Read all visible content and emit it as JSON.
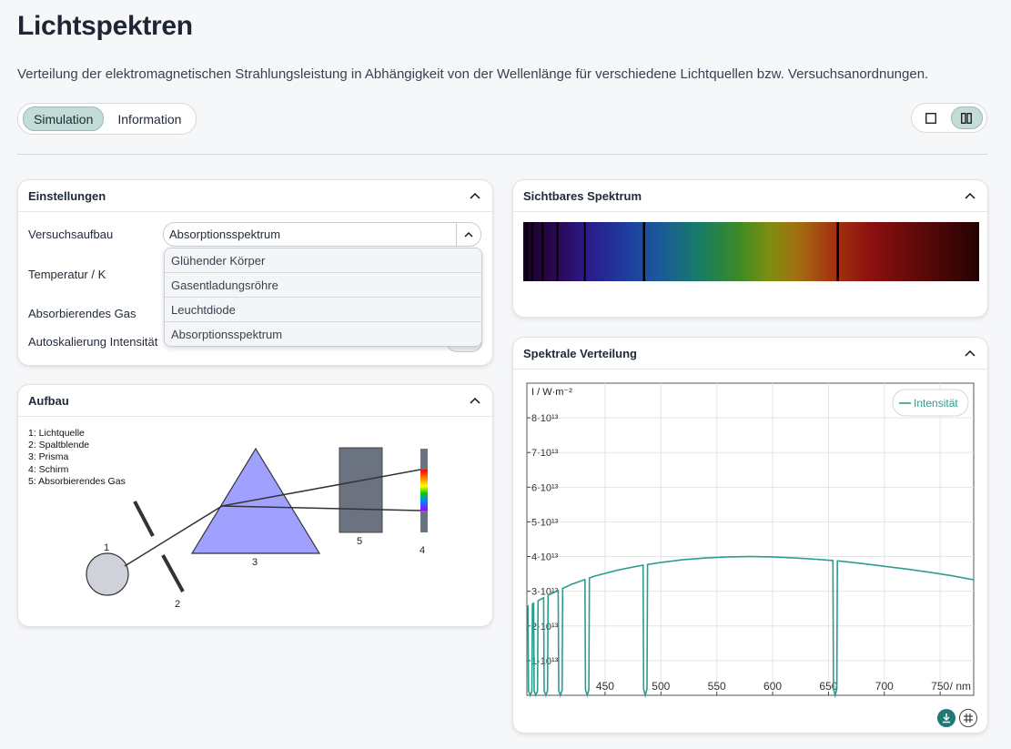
{
  "page": {
    "title": "Lichtspektren",
    "subtitle": "Verteilung der elektromagnetischen Strahlungsleistung in Abhängigkeit von der Wellenlänge für verschiedene Lichtquellen bzw. Versuchsanordnungen."
  },
  "tabs": [
    {
      "label": "Simulation",
      "active": true
    },
    {
      "label": "Information",
      "active": false
    }
  ],
  "layout_toggle": {
    "icons": [
      "single-column-icon",
      "two-column-icon"
    ],
    "active": "two-column-icon"
  },
  "settings": {
    "header": "Einstellungen",
    "setup_label": "Versuchsaufbau",
    "setup_value": "Absorptionsspektrum",
    "temperature_label": "Temperatur / K",
    "gas_label": "Absorbierendes Gas",
    "autoscale_label": "Autoskalierung Intensität",
    "options": [
      "Glühender Körper",
      "Gasentladungsröhre",
      "Leuchtdiode",
      "Absorptionsspektrum"
    ]
  },
  "setup": {
    "header": "Aufbau",
    "legend": [
      "1: Lichtquelle",
      "2: Spaltblende",
      "3: Prisma",
      "4: Schirm",
      "5: Absorbierendes Gas"
    ],
    "labels": [
      "1",
      "2",
      "3",
      "4",
      "5"
    ]
  },
  "visible_spectrum": {
    "header": "Sichtbares Spektrum"
  },
  "spectral": {
    "header": "Spektrale Verteilung"
  },
  "colors": {
    "accent": "#2a9d8f",
    "tab_active": "#c4dcd7",
    "prism": "#a0a0ff",
    "gas_cell": "#6b7280"
  },
  "chart_data": {
    "type": "line",
    "ylabel": "I / W·m⁻²",
    "xlabel": "/ nm",
    "xlim": [
      380,
      780
    ],
    "ylim": [
      0,
      90000000000000.0
    ],
    "x_ticks": [
      450,
      500,
      550,
      600,
      650,
      700,
      750
    ],
    "x_tick_labels": [
      "450",
      "500",
      "550",
      "600",
      "650",
      "700",
      "750"
    ],
    "y_ticks": [
      10000000000000.0,
      20000000000000.0,
      30000000000000.0,
      40000000000000.0,
      50000000000000.0,
      60000000000000.0,
      70000000000000.0,
      80000000000000.0
    ],
    "y_tick_labels": [
      "1·10¹³",
      "2·10¹³",
      "3·10¹³",
      "4·10¹³",
      "5·10¹³",
      "6·10¹³",
      "7·10¹³",
      "8·10¹³"
    ],
    "legend": "top-right",
    "grid": true,
    "series": [
      {
        "name": "Intensität",
        "x": [
          380,
          400,
          420,
          440,
          460,
          480,
          500,
          520,
          540,
          560,
          580,
          600,
          620,
          640,
          660,
          680,
          700,
          720,
          740,
          760,
          780
        ],
        "values": [
          25500000000000.0,
          29000000000000.0,
          32000000000000.0,
          34300000000000.0,
          36000000000000.0,
          37300000000000.0,
          38300000000000.0,
          39100000000000.0,
          39600000000000.0,
          39900000000000.0,
          40000000000000.0,
          39900000000000.0,
          39600000000000.0,
          39200000000000.0,
          38700000000000.0,
          38000000000000.0,
          37200000000000.0,
          36400000000000.0,
          35500000000000.0,
          34500000000000.0,
          33300000000000.0
        ]
      }
    ],
    "absorption_lines_nm": [
      383,
      388,
      397,
      410,
      434,
      486,
      656
    ]
  }
}
